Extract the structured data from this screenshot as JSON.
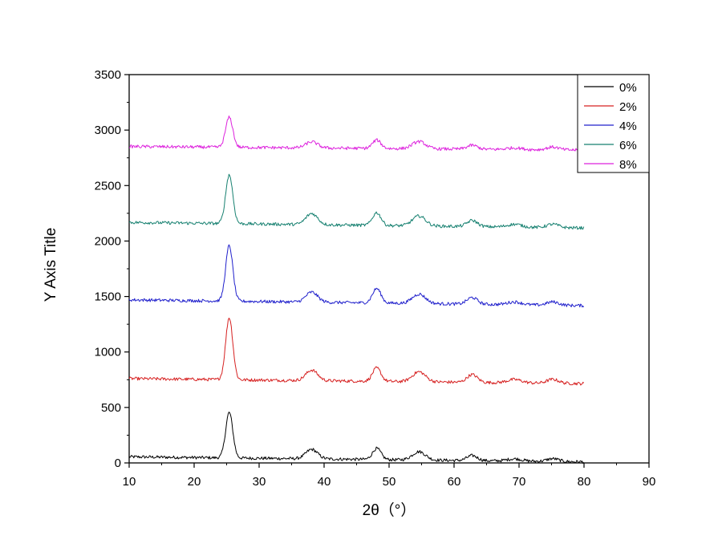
{
  "chart_data": {
    "type": "line",
    "xlabel": "2θ（°）",
    "ylabel": "Y Axis Title",
    "xlim": [
      10,
      90
    ],
    "ylim": [
      0,
      3500
    ],
    "xticks": [
      10,
      20,
      30,
      40,
      50,
      60,
      70,
      80,
      90
    ],
    "yticks": [
      0,
      500,
      1000,
      1500,
      2000,
      2500,
      3000,
      3500
    ],
    "grid": false,
    "legend_position": "top-right",
    "peaks": [
      {
        "x": 25.4,
        "sigma": 0.55
      },
      {
        "x": 38.1,
        "sigma": 0.9
      },
      {
        "x": 48.1,
        "sigma": 0.65
      },
      {
        "x": 54.6,
        "sigma": 1.0
      },
      {
        "x": 62.8,
        "sigma": 0.8
      },
      {
        "x": 69.3,
        "sigma": 1.1
      },
      {
        "x": 75.2,
        "sigma": 0.9
      }
    ],
    "series": [
      {
        "name": "0%",
        "color": "#000000",
        "x_range": [
          10,
          80
        ],
        "baseline_start": 55,
        "baseline_end": 10,
        "noise": 14,
        "peak_heights": [
          410,
          85,
          100,
          75,
          45,
          20,
          25
        ]
      },
      {
        "name": "2%",
        "color": "#d62020",
        "x_range": [
          10,
          80
        ],
        "baseline_start": 760,
        "baseline_end": 715,
        "noise": 14,
        "peak_heights": [
          560,
          95,
          120,
          90,
          70,
          30,
          35
        ]
      },
      {
        "name": "4%",
        "color": "#2020cc",
        "x_range": [
          10,
          80
        ],
        "baseline_start": 1470,
        "baseline_end": 1418,
        "noise": 14,
        "peak_heights": [
          500,
          90,
          130,
          85,
          60,
          25,
          30
        ]
      },
      {
        "name": "6%",
        "color": "#168070",
        "x_range": [
          10,
          80
        ],
        "baseline_start": 2168,
        "baseline_end": 2118,
        "noise": 14,
        "peak_heights": [
          440,
          100,
          115,
          90,
          55,
          25,
          30
        ]
      },
      {
        "name": "8%",
        "color": "#dd22dd",
        "x_range": [
          10,
          80
        ],
        "baseline_start": 2852,
        "baseline_end": 2820,
        "noise": 14,
        "peak_heights": [
          270,
          55,
          75,
          65,
          35,
          15,
          25
        ]
      }
    ]
  }
}
